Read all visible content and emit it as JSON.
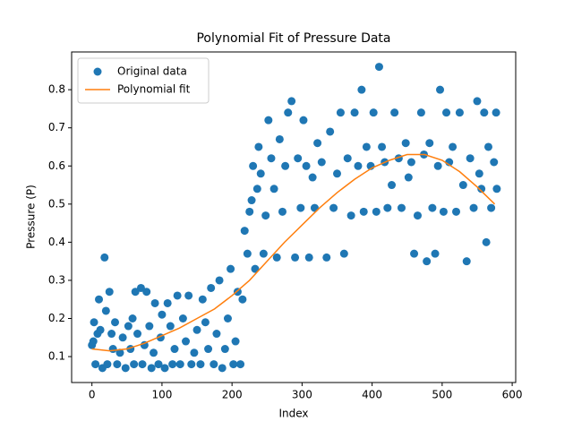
{
  "chart_data": {
    "type": "scatter",
    "title": "Polynomial Fit of Pressure Data",
    "x_label": "Index",
    "y_label": "Pressure (P)",
    "xlim": [
      -29,
      605
    ],
    "ylim": [
      0.032,
      0.899
    ],
    "xticks": [
      0,
      100,
      200,
      300,
      400,
      500,
      600
    ],
    "yticks": [
      0.1,
      0.2,
      0.3,
      0.4,
      0.5,
      0.6,
      0.7,
      0.8
    ],
    "grid": false,
    "legend": "upper-left",
    "series": [
      {
        "name": "Original data",
        "type": "scatter",
        "color": "#1f77b4",
        "x": [
          0,
          2,
          3,
          5,
          8,
          10,
          12,
          15,
          18,
          20,
          22,
          25,
          28,
          30,
          33,
          36,
          40,
          44,
          48,
          52,
          55,
          58,
          60,
          62,
          65,
          70,
          72,
          75,
          78,
          82,
          85,
          88,
          90,
          95,
          98,
          100,
          104,
          108,
          112,
          115,
          118,
          122,
          126,
          130,
          134,
          138,
          142,
          146,
          150,
          155,
          158,
          162,
          166,
          170,
          174,
          178,
          182,
          186,
          190,
          194,
          198,
          202,
          205,
          208,
          212,
          215,
          218,
          222,
          225,
          228,
          230,
          233,
          236,
          238,
          241,
          245,
          248,
          252,
          256,
          260,
          264,
          268,
          272,
          276,
          280,
          285,
          290,
          294,
          298,
          302,
          306,
          310,
          315,
          318,
          322,
          328,
          335,
          340,
          345,
          350,
          355,
          360,
          365,
          370,
          375,
          380,
          385,
          388,
          392,
          398,
          402,
          406,
          410,
          414,
          418,
          422,
          428,
          432,
          438,
          442,
          448,
          452,
          456,
          460,
          465,
          470,
          474,
          478,
          482,
          486,
          490,
          494,
          497,
          502,
          506,
          510,
          515,
          520,
          525,
          530,
          535,
          540,
          545,
          550,
          553,
          556,
          560,
          563,
          566,
          570,
          574,
          577,
          578
        ],
        "values": [
          0.13,
          0.14,
          0.19,
          0.08,
          0.16,
          0.25,
          0.17,
          0.07,
          0.36,
          0.22,
          0.08,
          0.27,
          0.16,
          0.12,
          0.19,
          0.08,
          0.11,
          0.15,
          0.07,
          0.18,
          0.12,
          0.2,
          0.08,
          0.27,
          0.16,
          0.28,
          0.08,
          0.13,
          0.27,
          0.18,
          0.07,
          0.11,
          0.24,
          0.08,
          0.15,
          0.21,
          0.07,
          0.24,
          0.18,
          0.08,
          0.12,
          0.26,
          0.08,
          0.2,
          0.14,
          0.26,
          0.08,
          0.11,
          0.17,
          0.08,
          0.25,
          0.19,
          0.12,
          0.28,
          0.08,
          0.16,
          0.3,
          0.07,
          0.12,
          0.2,
          0.33,
          0.08,
          0.14,
          0.27,
          0.08,
          0.25,
          0.43,
          0.37,
          0.48,
          0.51,
          0.6,
          0.33,
          0.54,
          0.65,
          0.58,
          0.37,
          0.47,
          0.72,
          0.62,
          0.54,
          0.36,
          0.67,
          0.48,
          0.6,
          0.74,
          0.77,
          0.36,
          0.62,
          0.49,
          0.72,
          0.6,
          0.36,
          0.57,
          0.49,
          0.66,
          0.61,
          0.36,
          0.69,
          0.49,
          0.58,
          0.74,
          0.37,
          0.62,
          0.47,
          0.74,
          0.6,
          0.8,
          0.48,
          0.65,
          0.6,
          0.74,
          0.48,
          0.86,
          0.65,
          0.61,
          0.49,
          0.55,
          0.74,
          0.62,
          0.49,
          0.66,
          0.57,
          0.61,
          0.37,
          0.47,
          0.74,
          0.63,
          0.35,
          0.66,
          0.49,
          0.37,
          0.6,
          0.8,
          0.48,
          0.74,
          0.61,
          0.65,
          0.48,
          0.74,
          0.55,
          0.35,
          0.62,
          0.49,
          0.77,
          0.58,
          0.54,
          0.74,
          0.4,
          0.65,
          0.49,
          0.61,
          0.74,
          0.54
        ]
      },
      {
        "name": "Polynomial fit",
        "type": "line",
        "color": "#ff7f0e",
        "x": [
          0,
          25,
          50,
          75,
          100,
          125,
          150,
          175,
          200,
          225,
          250,
          275,
          300,
          325,
          350,
          375,
          400,
          425,
          450,
          475,
          500,
          525,
          550,
          575
        ],
        "values": [
          0.12,
          0.115,
          0.12,
          0.135,
          0.155,
          0.175,
          0.2,
          0.225,
          0.26,
          0.3,
          0.35,
          0.4,
          0.445,
          0.49,
          0.53,
          0.565,
          0.595,
          0.615,
          0.63,
          0.63,
          0.615,
          0.585,
          0.545,
          0.5
        ]
      }
    ]
  }
}
